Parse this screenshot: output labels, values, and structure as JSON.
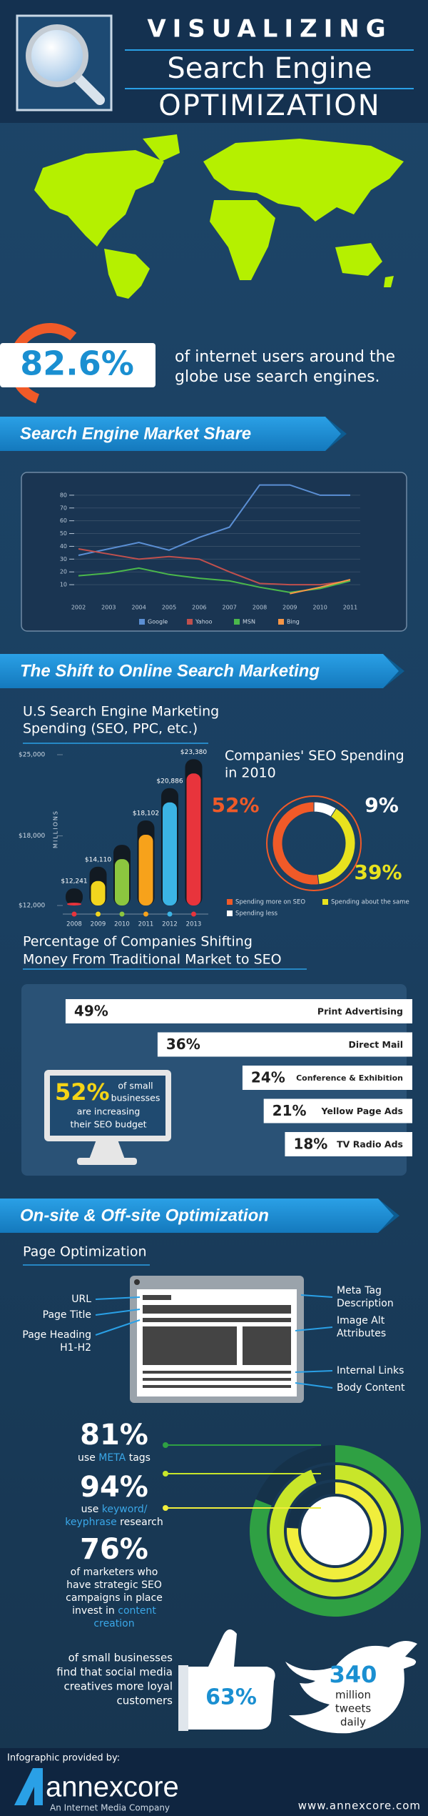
{
  "header": {
    "title_top": "VISUALIZING",
    "title_middle": "Search Engine",
    "title_bottom": "OPTIMIZATION"
  },
  "usage_stat": {
    "value": 82.6,
    "label": "82.6%",
    "text_lines": [
      "of internet users around the",
      "globe use search engines."
    ]
  },
  "sections": [
    "Search Engine Market Share",
    "The Shift to Online Search Marketing",
    "On-site & Off-site Optimization"
  ],
  "chart_data": [
    {
      "type": "line",
      "categories": [
        "2002",
        "2003",
        "2004",
        "2005",
        "2006",
        "2007",
        "2008",
        "2009",
        "2010",
        "2011"
      ],
      "series": [
        {
          "name": "Google",
          "color": "#5b8fd4",
          "values": [
            33,
            38,
            43,
            37,
            47,
            55,
            88,
            88,
            80,
            80
          ]
        },
        {
          "name": "Yahoo",
          "color": "#c0504d",
          "values": [
            38,
            34,
            30,
            32,
            30,
            20,
            11,
            10,
            10,
            13
          ]
        },
        {
          "name": "MSN",
          "color": "#4bb84b",
          "values": [
            17,
            19,
            23,
            18,
            15,
            13,
            8,
            4,
            7,
            13
          ]
        },
        {
          "name": "Bing",
          "color": "#f79646",
          "values": [
            null,
            null,
            null,
            null,
            null,
            null,
            null,
            3,
            8,
            14
          ]
        }
      ],
      "ylim": [
        0,
        90
      ],
      "yticks": [
        10,
        20,
        30,
        40,
        50,
        60,
        70,
        80
      ],
      "grid": true,
      "legend": "bottom"
    },
    {
      "type": "bar",
      "title_lines": [
        "U.S Search Engine Marketing",
        "Spending (SEO, PPC, etc.)"
      ],
      "y_label": "MILLIONS",
      "categories": [
        "2008",
        "2009",
        "2010",
        "2011",
        "2012",
        "2013"
      ],
      "values": [
        12241,
        14110,
        16000,
        18102,
        20886,
        23380
      ],
      "value_labels": [
        "$12,241",
        "$14,110",
        null,
        "$18,102",
        "$20,886",
        "$23,380"
      ],
      "colors": [
        "#e8343c",
        "#f2d51e",
        "#8cc63f",
        "#f7a21b",
        "#3bb4e5",
        "#e8343c"
      ],
      "ylim": [
        12000,
        25000
      ],
      "yticks": [
        {
          "value": 12000,
          "label": "$12,000"
        },
        {
          "value": 18000,
          "label": "$18,000"
        },
        {
          "value": 25000,
          "label": "$25,000"
        }
      ]
    },
    {
      "type": "donut",
      "title_lines": [
        "Companies' SEO Spending",
        "in 2010"
      ],
      "categories": [
        "Spending more on SEO",
        "Spending less",
        "Spending about the same"
      ],
      "values": [
        52,
        9,
        39
      ],
      "value_labels": [
        "52%",
        "9%",
        "39%"
      ],
      "colors": [
        "#f05a28",
        "#ffffff",
        "#e8e21e"
      ]
    },
    {
      "type": "hbar",
      "title_lines": [
        "Percentage of Companies Shifting",
        "Money From Traditional Market to SEO"
      ],
      "categories": [
        "Print Advertising",
        "Direct Mail",
        "Conference & Exhibition",
        "Yellow Page Ads",
        "TV Radio Ads"
      ],
      "values": [
        49,
        36,
        24,
        21,
        18
      ],
      "value_labels": [
        "49%",
        "36%",
        "24%",
        "21%",
        "18%"
      ],
      "color": "#ffffff"
    },
    {
      "type": "rings",
      "values": [
        81,
        94,
        76
      ],
      "value_labels": [
        "81%",
        "94%",
        "76%"
      ],
      "colors": [
        "#2fa043",
        "#c8e62a",
        "#f1ee3c"
      ],
      "captions": [
        [
          [
            "use ",
            {
              "text": "META",
              "highlight": true
            },
            " tags"
          ]
        ],
        [
          [
            "use ",
            {
              "text": "keyword/",
              "highlight": true
            }
          ],
          [
            {
              "text": "keyphrase",
              "highlight": true
            },
            " research"
          ]
        ],
        [
          [
            "of marketers who"
          ],
          [
            "have strategic SEO"
          ],
          [
            "campaigns in place"
          ],
          [
            "invest in ",
            {
              "text": "content",
              "highlight": true
            }
          ],
          [
            {
              "text": "creation",
              "highlight": true
            }
          ]
        ]
      ]
    }
  ],
  "callout": {
    "value": 52,
    "label": "52%",
    "text_lines": [
      "of small",
      "businesses",
      "are increasing",
      "their SEO budget"
    ]
  },
  "page_optimization": {
    "title": "Page Optimization",
    "left_labels": [
      [
        "URL"
      ],
      [
        "Page Title"
      ],
      [
        "Page Heading",
        "H1-H2"
      ]
    ],
    "right_labels": [
      [
        "Meta Tag",
        "Description"
      ],
      [
        "Image Alt",
        "Attributes"
      ],
      [
        "Internal Links"
      ],
      [
        "Body Content"
      ]
    ]
  },
  "social": {
    "loyalty": {
      "value": 63,
      "label": "63%",
      "text_lines": [
        "of small businesses",
        "find that social media",
        "creatives more loyal",
        "customers"
      ]
    },
    "tweets": {
      "value": 340,
      "text_lines": [
        "million",
        "tweets",
        "daily"
      ]
    }
  },
  "footer": {
    "credit": "Infographic provided by:",
    "brand": "annexcore",
    "tagline": "An Internet Media Company",
    "url": "www.annexcore.com"
  }
}
